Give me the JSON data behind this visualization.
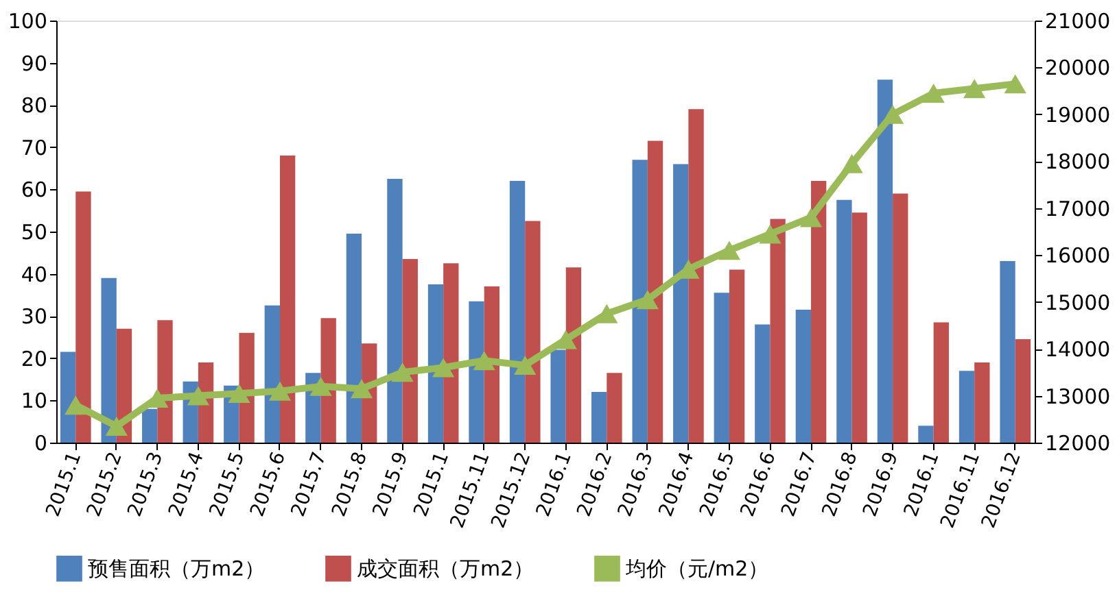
{
  "chart_data": {
    "type": "bar",
    "categories": [
      "2015.1",
      "2015.2",
      "2015.3",
      "2015.4",
      "2015.5",
      "2015.6",
      "2015.7",
      "2015.8",
      "2015.9",
      "2015.1",
      "2015.11",
      "2015.12",
      "2016.1",
      "2016.2",
      "2016.3",
      "2016.4",
      "2016.5",
      "2016.6",
      "2016.7",
      "2016.8",
      "2016.9",
      "2016.1",
      "2016.11",
      "2016.12"
    ],
    "series": [
      {
        "name": "预售面积（万m2）",
        "color": "#4f81bd",
        "values": [
          21.5,
          39,
          8,
          14.5,
          13.5,
          32.5,
          16.5,
          49.5,
          62.5,
          37.5,
          33.5,
          62,
          22,
          12,
          67,
          66,
          35.5,
          28,
          31.5,
          57.5,
          86,
          4,
          17,
          43
        ]
      },
      {
        "name": "成交面积（万m2）",
        "color": "#c0504d",
        "values": [
          59.5,
          27,
          29,
          19,
          26,
          68,
          29.5,
          23.5,
          43.5,
          42.5,
          37,
          52.5,
          41.5,
          16.5,
          71.5,
          79,
          41,
          53,
          62,
          54.5,
          59,
          28.5,
          19,
          24.5
        ]
      },
      {
        "name": "均价（元/m2）",
        "color": "#9bbb59",
        "type": "line",
        "axis": "y2",
        "marker": "triangle",
        "values": [
          12800,
          12350,
          12950,
          13000,
          13050,
          13100,
          13200,
          13150,
          13500,
          13600,
          13750,
          13650,
          14200,
          14750,
          15050,
          15700,
          16100,
          16450,
          16800,
          17950,
          19000,
          19450,
          19550,
          19650
        ]
      }
    ],
    "ylim": [
      0,
      100
    ],
    "yticks": [
      0,
      10,
      20,
      30,
      40,
      50,
      60,
      70,
      80,
      90,
      100
    ],
    "y2lim": [
      12000,
      21000
    ],
    "y2ticks": [
      12000,
      13000,
      14000,
      15000,
      16000,
      17000,
      18000,
      19000,
      20000,
      21000
    ],
    "grid": false,
    "legend": "bottom"
  }
}
